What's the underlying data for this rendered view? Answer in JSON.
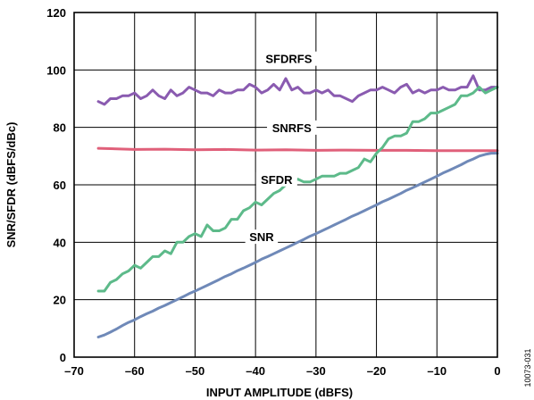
{
  "chart_data": {
    "type": "line",
    "xlabel": "INPUT AMPLITUDE (dBFS)",
    "ylabel": "SNR/SFDR (dBFS/dBc)",
    "xlim": [
      -70,
      0
    ],
    "ylim": [
      0,
      120
    ],
    "x_ticks": [
      "–70",
      "–60",
      "–50",
      "–40",
      "–30",
      "–20",
      "–10",
      "0"
    ],
    "y_ticks": [
      "0",
      "20",
      "40",
      "60",
      "80",
      "100",
      "120"
    ],
    "grid": true,
    "figure_id": "10073-031",
    "series": [
      {
        "name": "SFDRFS",
        "color": "#8a5bb0",
        "x": [
          -66,
          -65,
          -64,
          -63,
          -62,
          -61,
          -60,
          -59,
          -58,
          -57,
          -56,
          -55,
          -54,
          -53,
          -52,
          -51,
          -50,
          -49,
          -48,
          -47,
          -46,
          -45,
          -44,
          -43,
          -42,
          -41,
          -40,
          -39,
          -38,
          -37,
          -36,
          -35,
          -34,
          -33,
          -32,
          -31,
          -30,
          -29,
          -28,
          -27,
          -26,
          -25,
          -24,
          -23,
          -22,
          -21,
          -20,
          -19,
          -18,
          -17,
          -16,
          -15,
          -14,
          -13,
          -12,
          -11,
          -10,
          -9,
          -8,
          -7,
          -6,
          -5,
          -4,
          -3,
          -2,
          -1,
          0
        ],
        "y": [
          89,
          88,
          90,
          90,
          91,
          91,
          92,
          90,
          91,
          93,
          91,
          90,
          93,
          91,
          92,
          94,
          93,
          92,
          92,
          91,
          93,
          92,
          92,
          93,
          93,
          95,
          94,
          92,
          93,
          95,
          93,
          97,
          93,
          94,
          92,
          92,
          93,
          92,
          93,
          91,
          91,
          90,
          89,
          91,
          92,
          93,
          93,
          94,
          93,
          92,
          94,
          95,
          92,
          93,
          92,
          93,
          93,
          94,
          93,
          93,
          94,
          94,
          98,
          93,
          93,
          94,
          94
        ]
      },
      {
        "name": "SNRFS",
        "color": "#e0607a",
        "x": [
          -66,
          -60,
          -55,
          -50,
          -45,
          -40,
          -35,
          -30,
          -25,
          -20,
          -15,
          -10,
          -5,
          0
        ],
        "y": [
          72.7,
          72.3,
          72.4,
          72.2,
          72.3,
          72.1,
          72.2,
          72.0,
          72.1,
          72.0,
          72.0,
          71.9,
          71.9,
          71.9
        ]
      },
      {
        "name": "SFDR",
        "color": "#5dba8a",
        "x": [
          -66,
          -65,
          -64,
          -63,
          -62,
          -61,
          -60,
          -59,
          -58,
          -57,
          -56,
          -55,
          -54,
          -53,
          -52,
          -51,
          -50,
          -49,
          -48,
          -47,
          -46,
          -45,
          -44,
          -43,
          -42,
          -41,
          -40,
          -39,
          -38,
          -37,
          -36,
          -35,
          -34,
          -33,
          -32,
          -31,
          -30,
          -29,
          -28,
          -27,
          -26,
          -25,
          -24,
          -23,
          -22,
          -21,
          -20,
          -19,
          -18,
          -17,
          -16,
          -15,
          -14,
          -13,
          -12,
          -11,
          -10,
          -9,
          -8,
          -7,
          -6,
          -5,
          -4,
          -3,
          -2,
          -1,
          0
        ],
        "y": [
          23,
          23,
          26,
          27,
          29,
          30,
          32,
          31,
          33,
          35,
          35,
          37,
          36,
          40,
          40,
          42,
          43,
          42,
          46,
          44,
          44,
          45,
          48,
          48,
          51,
          52,
          54,
          53,
          55,
          57,
          58,
          60,
          61,
          62,
          61,
          61,
          62,
          63,
          63,
          63,
          64,
          64,
          65,
          66,
          69,
          68,
          71,
          73,
          76,
          77,
          77,
          78,
          82,
          82,
          83,
          85,
          85,
          86,
          87,
          88,
          91,
          91,
          92,
          94,
          92,
          93,
          94
        ]
      },
      {
        "name": "SNR",
        "color": "#6f89b8",
        "x": [
          -66,
          -65,
          -64,
          -63,
          -62,
          -61,
          -60,
          -59,
          -58,
          -57,
          -56,
          -55,
          -54,
          -53,
          -52,
          -51,
          -50,
          -49,
          -48,
          -47,
          -46,
          -45,
          -44,
          -43,
          -42,
          -41,
          -40,
          -39,
          -38,
          -37,
          -36,
          -35,
          -34,
          -33,
          -32,
          -31,
          -30,
          -29,
          -28,
          -27,
          -26,
          -25,
          -24,
          -23,
          -22,
          -21,
          -20,
          -19,
          -18,
          -17,
          -16,
          -15,
          -14,
          -13,
          -12,
          -11,
          -10,
          -9,
          -8,
          -7,
          -6,
          -5,
          -4,
          -3,
          -2,
          -1,
          0
        ],
        "y": [
          7.0,
          7.7,
          8.7,
          9.8,
          11.0,
          12.1,
          13.0,
          14.1,
          15.1,
          16.0,
          17.1,
          18.0,
          19.0,
          20.0,
          21.0,
          22.1,
          23.0,
          24.0,
          25.0,
          26.0,
          27.0,
          28.1,
          29.0,
          30.1,
          31.0,
          32.0,
          33.0,
          34.1,
          35.0,
          36.0,
          37.0,
          38.0,
          39.0,
          40.0,
          41.0,
          42.1,
          43.0,
          44.0,
          45.0,
          46.0,
          47.0,
          48.0,
          49.1,
          50.0,
          51.0,
          52.0,
          53.0,
          54.1,
          55.0,
          56.0,
          57.0,
          58.1,
          59.0,
          60.0,
          61.0,
          62.0,
          63.0,
          64.1,
          65.0,
          66.0,
          67.0,
          68.1,
          69.0,
          70.0,
          70.6,
          71.0,
          71.0
        ]
      }
    ],
    "annotations": [
      {
        "text": "SFDRFS",
        "series": "SFDRFS"
      },
      {
        "text": "SNRFS",
        "series": "SNRFS"
      },
      {
        "text": "SFDR",
        "series": "SFDR"
      },
      {
        "text": "SNR",
        "series": "SNR"
      }
    ]
  }
}
